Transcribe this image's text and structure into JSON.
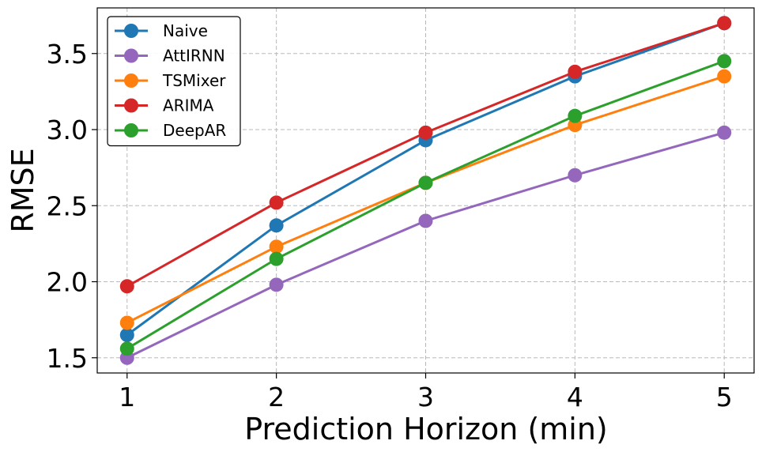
{
  "chart_data": {
    "type": "line",
    "title": "",
    "xlabel": "Prediction Horizon (min)",
    "ylabel": "RMSE",
    "x": [
      1,
      2,
      3,
      4,
      5
    ],
    "xlim": [
      0.8,
      5.2
    ],
    "ylim": [
      1.4,
      3.8
    ],
    "yticks": [
      1.5,
      2.0,
      2.5,
      3.0,
      3.5
    ],
    "ytick_labels": [
      "1.5",
      "2.0",
      "2.5",
      "3.0",
      "3.5"
    ],
    "xticks": [
      1,
      2,
      3,
      4,
      5
    ],
    "xtick_labels": [
      "1",
      "2",
      "3",
      "4",
      "5"
    ],
    "grid": true,
    "legend_position": "top-left",
    "series": [
      {
        "name": "Naive",
        "color": "#1f77b4",
        "values": [
          1.65,
          2.37,
          2.93,
          3.35,
          3.7
        ]
      },
      {
        "name": "AttIRNN",
        "color": "#9467bd",
        "values": [
          1.5,
          1.98,
          2.4,
          2.7,
          2.98
        ]
      },
      {
        "name": "TSMixer",
        "color": "#ff7f0e",
        "values": [
          1.73,
          2.23,
          2.65,
          3.03,
          3.35
        ]
      },
      {
        "name": "ARIMA",
        "color": "#d62728",
        "values": [
          1.97,
          2.52,
          2.98,
          3.38,
          3.7
        ]
      },
      {
        "name": "DeepAR",
        "color": "#2ca02c",
        "values": [
          1.56,
          2.15,
          2.65,
          3.09,
          3.45
        ]
      }
    ]
  }
}
